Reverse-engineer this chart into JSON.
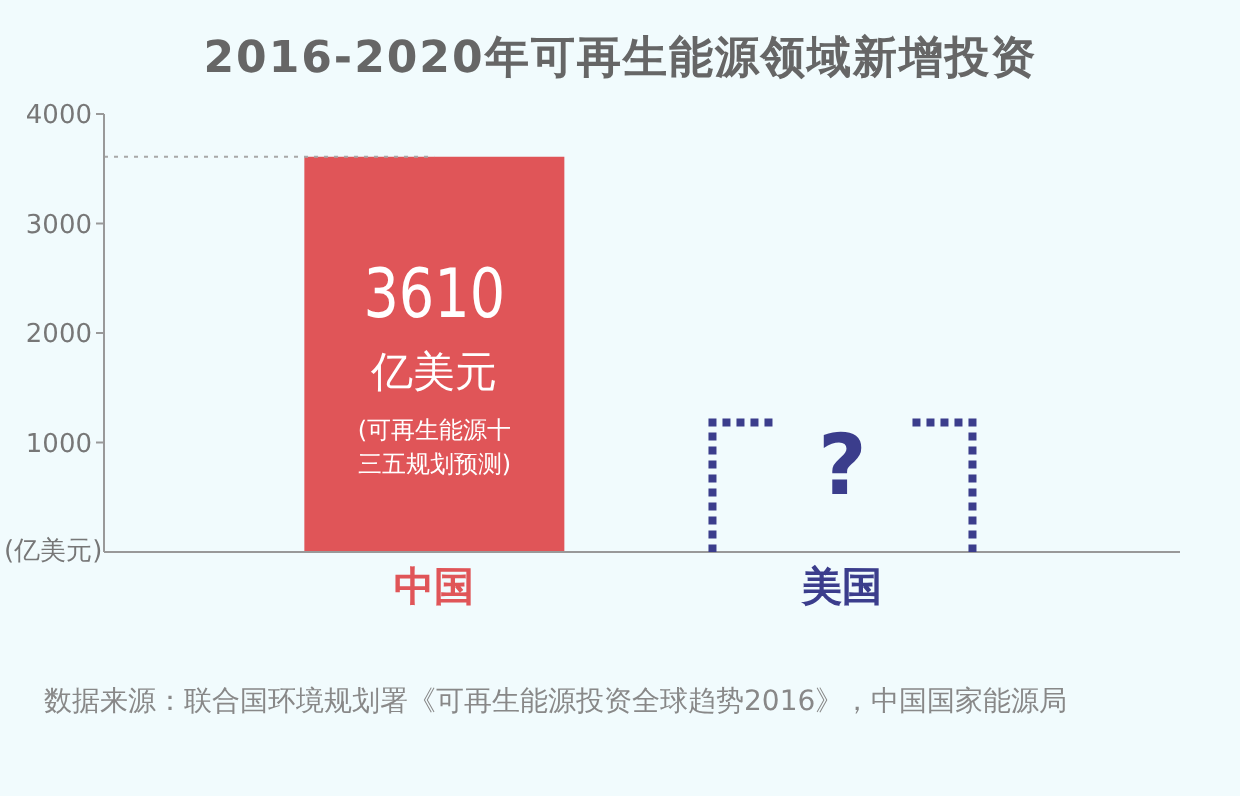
{
  "chart_data": {
    "type": "bar",
    "title": "2016-2020年可再生能源领域新增投资",
    "ylabel": "(亿美元)",
    "categories": [
      "中国",
      "美国"
    ],
    "values": [
      3610,
      null
    ],
    "colors": [
      "#e05558",
      "#3b3d8c"
    ],
    "value_labels": [
      "3610",
      null
    ],
    "ylim": [
      0,
      4000
    ],
    "yticks": [
      1000,
      2000,
      3000,
      4000
    ],
    "grid": false,
    "legend": false,
    "ref_lines": [
      {
        "axis": "y",
        "value": 3610,
        "line_style": "dotted",
        "color": "#a8a8a8"
      }
    ],
    "annotations": [
      "亿美元",
      "(可再生能源十三五规划预测)",
      "?",
      "数据来源：联合国环境规划署《可再生能源投资全球趋势2016》，中国国家能源局"
    ]
  }
}
